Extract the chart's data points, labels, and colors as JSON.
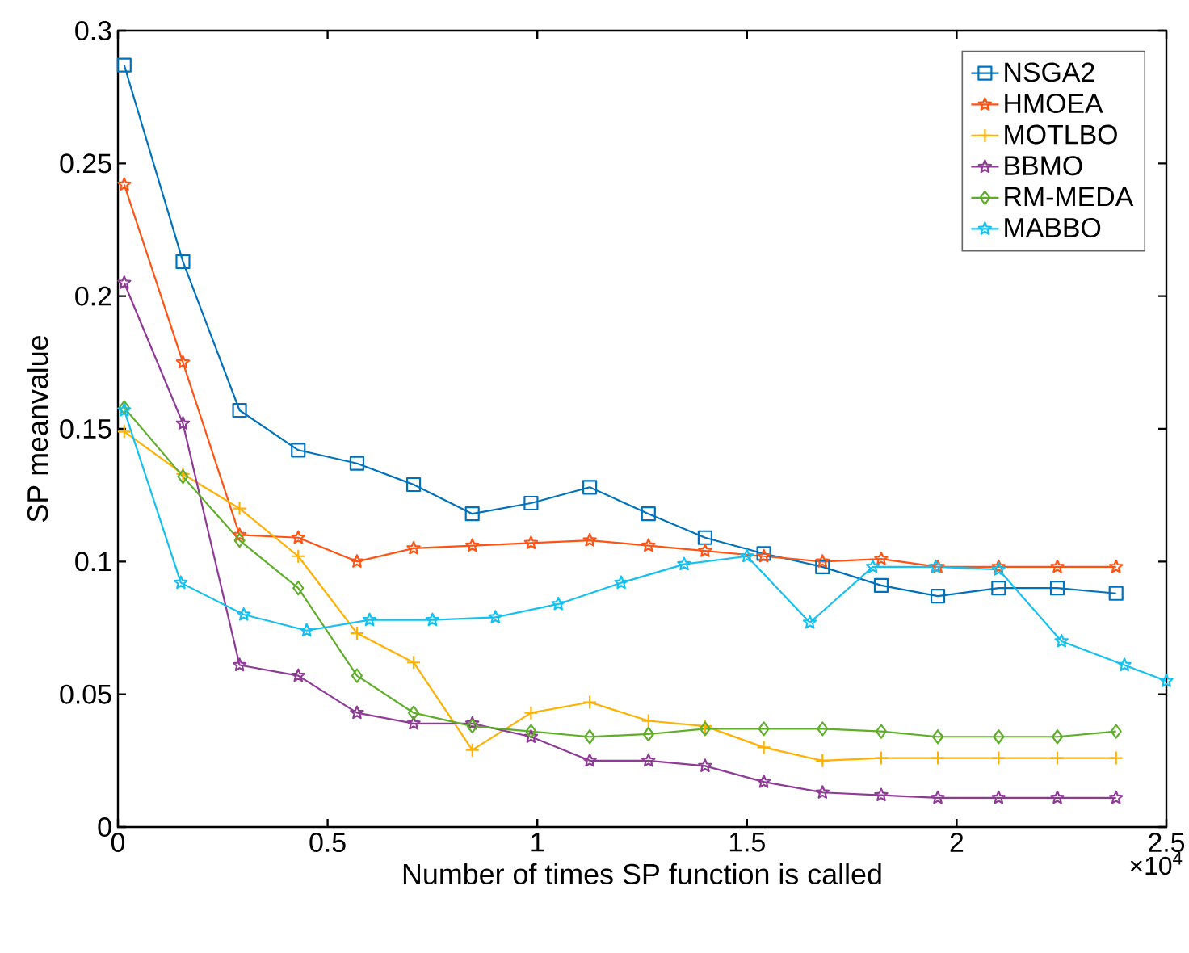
{
  "chart_data": {
    "type": "line",
    "xlabel": "Number of times SP function is called",
    "ylabel": "SP meanvalue",
    "annotations": [
      "×10$^{4}$"
    ],
    "x": [
      0.015,
      0.155,
      0.29,
      0.43,
      0.57,
      0.705,
      0.845,
      0.985,
      1.125,
      1.265,
      1.4,
      1.54,
      1.68,
      1.82,
      1.955,
      2.1,
      2.24,
      2.38
    ],
    "series": [
      {
        "name": "NSGA2",
        "color": "#0072bd",
        "marker": "square",
        "values": [
          0.287,
          0.213,
          0.157,
          0.142,
          0.137,
          0.129,
          0.118,
          0.122,
          0.128,
          0.118,
          0.109,
          0.103,
          0.098,
          0.091,
          0.087,
          0.09,
          0.09,
          0.088
        ]
      },
      {
        "name": "HMOEA",
        "color": "#ff5314",
        "marker": "star",
        "values": [
          0.242,
          0.175,
          0.11,
          0.109,
          0.1,
          0.105,
          0.106,
          0.107,
          0.108,
          0.106,
          0.104,
          0.102,
          0.1,
          0.101,
          0.098,
          0.098,
          0.098,
          0.098
        ]
      },
      {
        "name": "MOTLBO",
        "color": "#ffb000",
        "marker": "cross",
        "values": [
          0.149,
          0.133,
          0.12,
          0.102,
          0.073,
          0.062,
          0.029,
          0.043,
          0.047,
          0.04,
          0.038,
          0.03,
          0.025,
          0.026,
          0.026,
          0.026,
          0.026,
          0.026
        ]
      },
      {
        "name": "BBMO",
        "color": "#8e3a96",
        "marker": "star",
        "values": [
          0.205,
          0.152,
          0.061,
          0.057,
          0.043,
          0.039,
          0.039,
          0.034,
          0.025,
          0.025,
          0.023,
          0.017,
          0.013,
          0.012,
          0.011,
          0.011,
          0.011,
          0.011
        ]
      },
      {
        "name": "RM-MEDA",
        "color": "#5fae2a",
        "marker": "diamond",
        "values": [
          0.158,
          0.132,
          0.108,
          0.09,
          0.057,
          0.043,
          0.038,
          0.036,
          0.034,
          0.035,
          0.037,
          0.037,
          0.037,
          0.036,
          0.034,
          0.034,
          0.034,
          0.036
        ]
      },
      {
        "name": "MABBO",
        "color": "#13c0f0",
        "marker": "star",
        "x": [
          0.015,
          0.15,
          0.3,
          0.45,
          0.6,
          0.75,
          0.9,
          1.05,
          1.2,
          1.35,
          1.5,
          1.65,
          1.8,
          1.95,
          2.1,
          2.25,
          2.4,
          2.5
        ],
        "values": [
          0.157,
          0.092,
          0.08,
          0.074,
          0.078,
          0.078,
          0.079,
          0.084,
          0.092,
          0.099,
          0.102,
          0.077,
          0.098,
          0.098,
          0.097,
          0.07,
          0.061,
          0.055
        ]
      }
    ],
    "xlim": [
      0,
      2.5
    ],
    "ylim": [
      0,
      0.3
    ],
    "xticks": [
      0,
      0.5,
      1,
      1.5,
      2,
      2.5
    ],
    "yticks": [
      0,
      0.05,
      0.1,
      0.15,
      0.2,
      0.25,
      0.3
    ],
    "legend": "top right",
    "grid": false
  }
}
